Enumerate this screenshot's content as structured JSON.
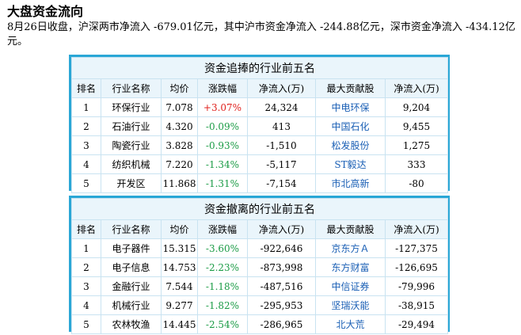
{
  "heading": "大盘资金流向",
  "summary": "8月26日收盘，沪深两市净流入 -679.01亿元，其中沪市资金净流入 -244.88亿元，深市资金净流入 -434.12亿元。",
  "colors": {
    "border": "#2aa7d6",
    "up": "#e0201c",
    "down": "#1a9b45",
    "stock": "#1a5fb5"
  },
  "columns": [
    "排名",
    "行业名称",
    "均价",
    "涨跌幅",
    "净流入(万)",
    "最大贡献股",
    "净流入(万)"
  ],
  "inflow_table": {
    "title": "资金追捧的行业前五名",
    "rows": [
      {
        "rank": "1",
        "industry": "环保行业",
        "avg_price": "7.078",
        "change": "+3.07%",
        "direction": "up",
        "net_inflow": "24,324",
        "top_stock": "中电环保",
        "stock_inflow": "9,204"
      },
      {
        "rank": "2",
        "industry": "石油行业",
        "avg_price": "4.320",
        "change": "-0.09%",
        "direction": "down",
        "net_inflow": "413",
        "top_stock": "中国石化",
        "stock_inflow": "9,455"
      },
      {
        "rank": "3",
        "industry": "陶瓷行业",
        "avg_price": "3.828",
        "change": "-0.93%",
        "direction": "down",
        "net_inflow": "-1,510",
        "top_stock": "松发股份",
        "stock_inflow": "1,275"
      },
      {
        "rank": "4",
        "industry": "纺织机械",
        "avg_price": "7.220",
        "change": "-1.34%",
        "direction": "down",
        "net_inflow": "-5,117",
        "top_stock": "ST毅达",
        "stock_inflow": "333"
      },
      {
        "rank": "5",
        "industry": "开发区",
        "avg_price": "11.868",
        "change": "-1.31%",
        "direction": "down",
        "net_inflow": "-7,154",
        "top_stock": "市北高新",
        "stock_inflow": "-80"
      }
    ]
  },
  "outflow_table": {
    "title": "资金撤离的行业前五名",
    "rows": [
      {
        "rank": "1",
        "industry": "电子器件",
        "avg_price": "15.315",
        "change": "-3.60%",
        "direction": "down",
        "net_inflow": "-922,646",
        "top_stock": "京东方Ａ",
        "stock_inflow": "-127,375"
      },
      {
        "rank": "2",
        "industry": "电子信息",
        "avg_price": "14.753",
        "change": "-2.23%",
        "direction": "down",
        "net_inflow": "-873,998",
        "top_stock": "东方财富",
        "stock_inflow": "-126,695"
      },
      {
        "rank": "3",
        "industry": "金融行业",
        "avg_price": "7.544",
        "change": "-1.18%",
        "direction": "down",
        "net_inflow": "-487,516",
        "top_stock": "中信证券",
        "stock_inflow": "-79,996"
      },
      {
        "rank": "4",
        "industry": "机械行业",
        "avg_price": "9.277",
        "change": "-1.82%",
        "direction": "down",
        "net_inflow": "-295,953",
        "top_stock": "坚瑞沃能",
        "stock_inflow": "-38,915"
      },
      {
        "rank": "5",
        "industry": "农林牧渔",
        "avg_price": "14.445",
        "change": "-2.54%",
        "direction": "down",
        "net_inflow": "-286,965",
        "top_stock": "北大荒",
        "stock_inflow": "-29,494"
      }
    ]
  }
}
